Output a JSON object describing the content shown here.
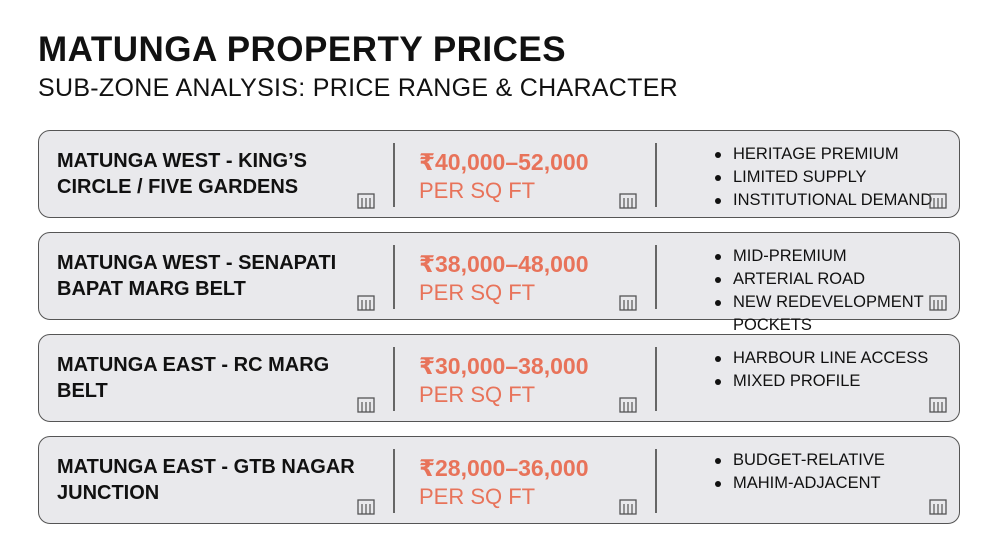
{
  "header": {
    "title": "MATUNGA PROPERTY PRICES",
    "subtitle": "SUB-ZONE ANALYSIS: PRICE RANGE & CHARACTER"
  },
  "rows": [
    {
      "zone": "MATUNGA WEST - KING’S CIRCLE / FIVE GARDENS",
      "price": "₹40,000–52,000",
      "unit": "PER SQ FT",
      "traits": [
        "HERITAGE PREMIUM",
        "LIMITED SUPPLY",
        "INSTITUTIONAL DEMAND"
      ]
    },
    {
      "zone": "MATUNGA WEST - SENAPATI BAPAT MARG BELT",
      "price": "₹38,000–48,000",
      "unit": "PER SQ FT",
      "traits": [
        "MID-PREMIUM",
        "ARTERIAL ROAD",
        "NEW REDEVELOPMENT POCKETS"
      ]
    },
    {
      "zone": "MATUNGA EAST - RC MARG BELT",
      "price": "₹30,000–38,000",
      "unit": "PER SQ FT",
      "traits": [
        "HARBOUR LINE ACCESS",
        "MIXED PROFILE"
      ]
    },
    {
      "zone": "MATUNGA EAST - GTB NAGAR JUNCTION",
      "price": "₹28,000–36,000",
      "unit": "PER SQ FT",
      "traits": [
        "BUDGET-RELATIVE",
        "MAHIM-ADJACENT"
      ]
    }
  ]
}
